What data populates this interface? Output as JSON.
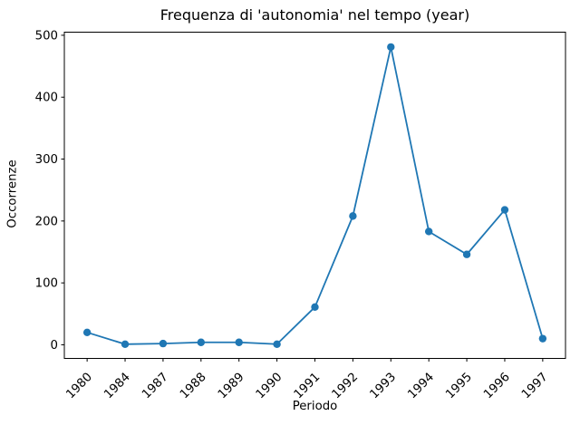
{
  "page": {
    "background": "#ffffff",
    "text_color": "#000000"
  },
  "chart_data": {
    "type": "line",
    "title": "Frequenza di 'autonomia' nel tempo (year)",
    "xlabel": "Periodo",
    "ylabel": "Occorrenze",
    "categories": [
      "1980",
      "1984",
      "1987",
      "1988",
      "1989",
      "1990",
      "1991",
      "1992",
      "1993",
      "1994",
      "1995",
      "1996",
      "1997"
    ],
    "values": [
      20,
      1,
      2,
      4,
      4,
      1,
      61,
      208,
      481,
      183,
      146,
      218,
      10
    ],
    "yticks": [
      0,
      100,
      200,
      300,
      400,
      500
    ],
    "ylim": [
      -22,
      505
    ],
    "xlim": [
      -0.6,
      12.6
    ],
    "grid": false,
    "legend": null,
    "marker": "o",
    "line_color": "#1f77b4",
    "marker_color": "#1f77b4",
    "spine_color": "#000000",
    "tick_label_rotation": 45
  }
}
